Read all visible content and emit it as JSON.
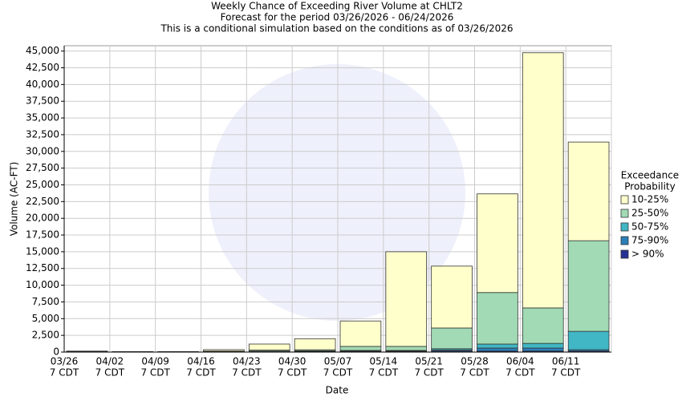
{
  "chart_data": {
    "type": "stacked_bar",
    "title": [
      "Weekly Chance of Exceeding River Volume at CHLT2",
      "Forecast for the period 03/26/2026 - 06/24/2026",
      "This is a conditional simulation based on the conditions as of 03/26/2026"
    ],
    "x_label": "Date",
    "y_label": "Volume (AC-FT)",
    "categories": [
      "03/26",
      "04/02",
      "04/09",
      "04/16",
      "04/23",
      "04/30",
      "05/07",
      "05/14",
      "05/21",
      "05/28",
      "06/04",
      "06/11"
    ],
    "time_label": "7 CDT",
    "legend_title": [
      "Exceedance",
      "Probability"
    ],
    "series": [
      {
        "name": "> 90%",
        "color": "#253494",
        "values": [
          100,
          30,
          30,
          50,
          80,
          100,
          120,
          120,
          150,
          150,
          150,
          150
        ]
      },
      {
        "name": "75-90%",
        "color": "#2c7fb8",
        "values": [
          10,
          5,
          5,
          10,
          20,
          30,
          30,
          30,
          150,
          450,
          450,
          200
        ]
      },
      {
        "name": "50-75%",
        "color": "#41b6c4",
        "values": [
          10,
          5,
          5,
          20,
          50,
          70,
          100,
          100,
          200,
          600,
          700,
          2750
        ]
      },
      {
        "name": "25-50%",
        "color": "#a1dab4",
        "values": [
          10,
          5,
          5,
          70,
          150,
          150,
          600,
          600,
          3100,
          7700,
          5300,
          13550
        ]
      },
      {
        "name": "10-25%",
        "color": "#ffffcc",
        "values": [
          20,
          5,
          5,
          210,
          900,
          1650,
          3800,
          14150,
          9250,
          14750,
          38150,
          14750
        ]
      }
    ],
    "ylim": [
      0,
      45800
    ],
    "yticks": [
      0,
      {
        "value": 2500,
        "label": "2,500"
      },
      {
        "value": 5000,
        "label": "5,000"
      },
      {
        "value": 7500,
        "label": "7,500"
      },
      {
        "value": 10000,
        "label": "10,000"
      },
      {
        "value": 12500,
        "label": "12,500"
      },
      {
        "value": 15000,
        "label": "15,000"
      },
      {
        "value": 17500,
        "label": "17,500"
      },
      {
        "value": 20000,
        "label": "20,000"
      },
      {
        "value": 22500,
        "label": "22,500"
      },
      {
        "value": 25000,
        "label": "25,000"
      },
      {
        "value": 27500,
        "label": "27,500"
      },
      {
        "value": 30000,
        "label": "30,000"
      },
      {
        "value": 32500,
        "label": "32,500"
      },
      {
        "value": 35000,
        "label": "35,000"
      },
      {
        "value": 37500,
        "label": "37,500"
      },
      {
        "value": 40000,
        "label": "40,000"
      },
      {
        "value": 42500,
        "label": "42,500"
      },
      {
        "value": 45000,
        "label": "45,000"
      }
    ],
    "grid": true
  }
}
